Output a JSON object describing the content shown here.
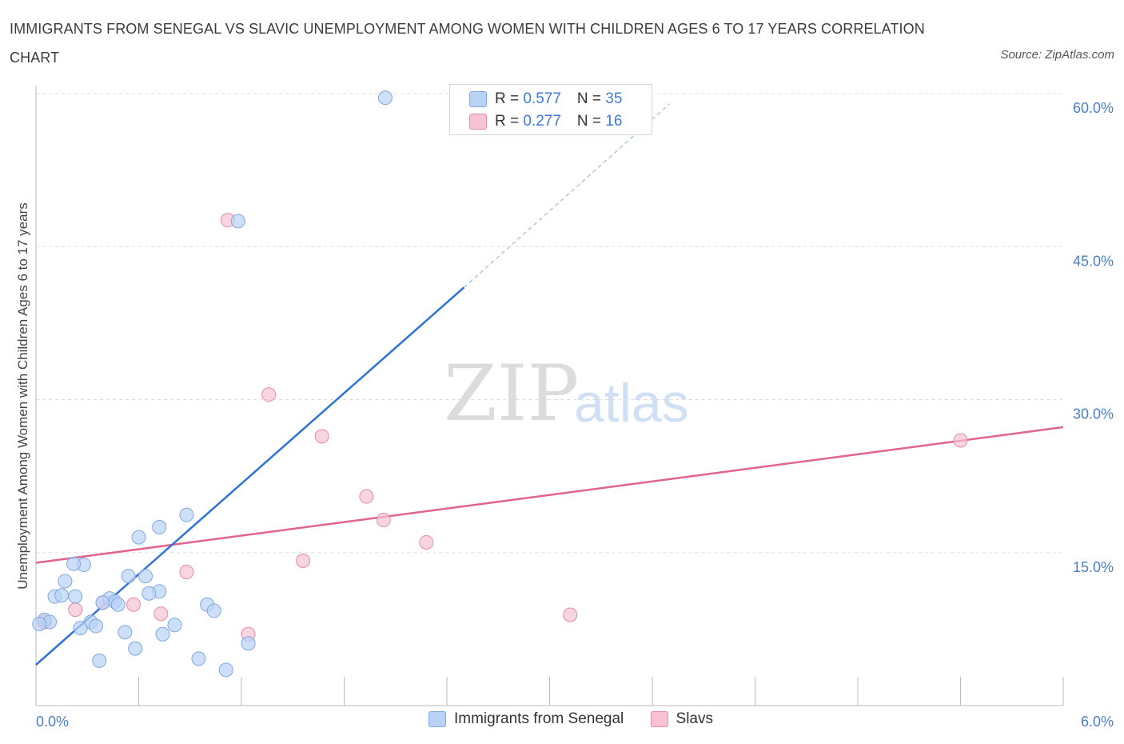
{
  "title": "IMMIGRANTS FROM SENEGAL VS SLAVIC UNEMPLOYMENT AMONG WOMEN WITH CHILDREN AGES 6 TO 17 YEARS CORRELATION CHART",
  "source": "Source: ZipAtlas.com",
  "watermark": {
    "zip": "ZIP",
    "atlas": "atlas"
  },
  "colors": {
    "blue_fill": "#b9d3f6",
    "blue_stroke": "#7fa8e2",
    "blue_line": "#2e73d6",
    "pink_fill": "#f7c3d3",
    "pink_stroke": "#e68aa8",
    "pink_line": "#e2638f",
    "grid": "#dddddd",
    "tick_text": "#4a7fc8"
  },
  "legend": {
    "rows": [
      {
        "r_label": "R = ",
        "r_value": "0.577",
        "n_label": "N = ",
        "n_value": "35",
        "series": "senegal"
      },
      {
        "r_label": "R = ",
        "r_value": "0.277",
        "n_label": "N = ",
        "n_value": "16",
        "series": "slavs"
      }
    ]
  },
  "bottom_legend": [
    "Immigrants from Senegal",
    "Slavs"
  ],
  "chart_data": {
    "type": "scatter",
    "title": "IMMIGRANTS FROM SENEGAL VS SLAVIC UNEMPLOYMENT AMONG WOMEN WITH CHILDREN AGES 6 TO 17 YEARS CORRELATION CHART",
    "xlabel": "",
    "ylabel": "Unemployment Among Women with Children Ages 6 to 17 years",
    "xlim": [
      0,
      6
    ],
    "ylim": [
      0,
      60
    ],
    "x_tick_labels": [
      "0.0%",
      "6.0%"
    ],
    "y_ticks": [
      15,
      30,
      45,
      60
    ],
    "y_tick_labels": [
      "15.0%",
      "30.0%",
      "45.0%",
      "60.0%"
    ],
    "grid": true,
    "series": [
      {
        "name": "Immigrants from Senegal",
        "color": "#b9d3f6",
        "points": [
          [
            2.04,
            59.6
          ],
          [
            1.18,
            47.5
          ],
          [
            0.88,
            18.7
          ],
          [
            0.72,
            17.5
          ],
          [
            0.6,
            16.5
          ],
          [
            0.28,
            13.8
          ],
          [
            0.22,
            13.9
          ],
          [
            0.54,
            12.7
          ],
          [
            0.64,
            12.7
          ],
          [
            0.17,
            12.2
          ],
          [
            0.72,
            11.2
          ],
          [
            0.66,
            11.0
          ],
          [
            0.11,
            10.7
          ],
          [
            0.15,
            10.8
          ],
          [
            0.23,
            10.7
          ],
          [
            0.43,
            10.5
          ],
          [
            0.46,
            10.2
          ],
          [
            0.39,
            10.1
          ],
          [
            0.48,
            9.9
          ],
          [
            1.0,
            9.9
          ],
          [
            1.04,
            9.3
          ],
          [
            0.05,
            8.4
          ],
          [
            0.08,
            8.2
          ],
          [
            0.32,
            8.2
          ],
          [
            0.02,
            8.0
          ],
          [
            0.35,
            7.8
          ],
          [
            0.81,
            7.9
          ],
          [
            0.26,
            7.6
          ],
          [
            0.52,
            7.2
          ],
          [
            0.74,
            7.0
          ],
          [
            1.24,
            6.1
          ],
          [
            0.58,
            5.6
          ],
          [
            0.95,
            4.6
          ],
          [
            0.37,
            4.4
          ],
          [
            1.11,
            3.5
          ]
        ],
        "trend": {
          "x0": 0.0,
          "y0": 4.0,
          "x1": 2.5,
          "y1": 41.0,
          "dash_x1": 3.7,
          "dash_y1": 59.0
        }
      },
      {
        "name": "Slavs",
        "color": "#f7c3d3",
        "points": [
          [
            1.12,
            47.6
          ],
          [
            1.36,
            30.5
          ],
          [
            1.67,
            26.4
          ],
          [
            5.4,
            26.0
          ],
          [
            1.93,
            20.5
          ],
          [
            2.03,
            18.2
          ],
          [
            2.28,
            16.0
          ],
          [
            1.56,
            14.2
          ],
          [
            0.88,
            13.1
          ],
          [
            0.39,
            10.1
          ],
          [
            0.57,
            9.9
          ],
          [
            0.23,
            9.4
          ],
          [
            0.73,
            9.0
          ],
          [
            3.12,
            8.9
          ],
          [
            0.05,
            8.2
          ],
          [
            1.24,
            7.0
          ]
        ],
        "trend": {
          "x0": 0.0,
          "y0": 14.0,
          "x1": 6.0,
          "y1": 27.3
        }
      }
    ]
  }
}
